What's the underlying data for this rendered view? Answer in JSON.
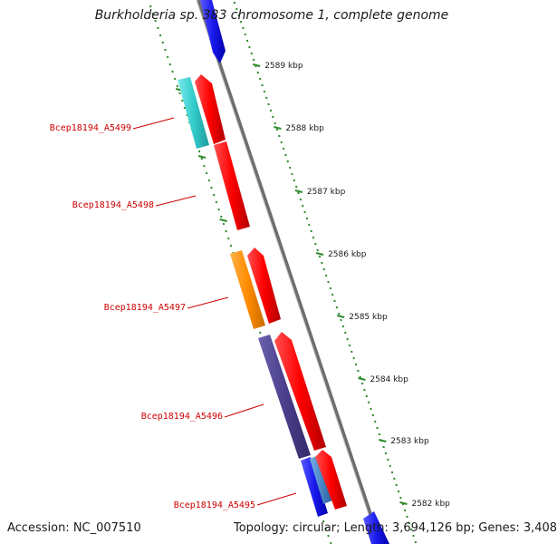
{
  "title": "Burkholderia sp. 383 chromosome 1, complete genome",
  "footer": {
    "accession": "Accession: NC_007510",
    "summary": "Topology: circular; Length: 3,694,126 bp; Genes: 3,408"
  },
  "scale_labels": [
    "2589 kbp",
    "2588 kbp",
    "2587 kbp",
    "2586 kbp",
    "2585 kbp",
    "2584 kbp",
    "2583 kbp",
    "2582 kbp"
  ],
  "gene_labels": [
    "Bcep18194_A5499",
    "Bcep18194_A5498",
    "Bcep18194_A5497",
    "Bcep18194_A5496",
    "Bcep18194_A5495"
  ],
  "colors": {
    "backbone": "#8a8a8a",
    "ticks": "#2e8b2e",
    "cds_red": "#ff0000",
    "cyan": "#33cccc",
    "orange": "#ff8c00",
    "purple": "#4a3f8c",
    "blue": "#1a1aee",
    "steel": "#4a86c8",
    "label_red": "#cc0000"
  }
}
